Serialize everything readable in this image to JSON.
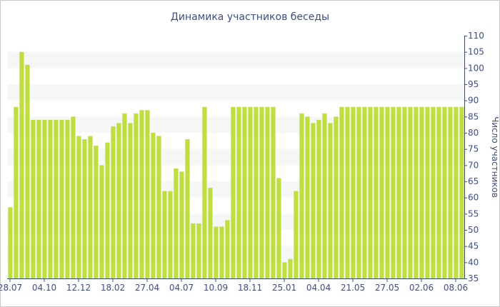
{
  "chart_data": {
    "type": "bar",
    "title": "Динамика участников беседы",
    "xlabel": "",
    "ylabel": "Число участников",
    "ylim": [
      35,
      110
    ],
    "y_ticks": [
      35,
      40,
      45,
      50,
      55,
      60,
      65,
      70,
      75,
      80,
      85,
      90,
      95,
      100,
      105,
      110
    ],
    "y_axis_position": "right",
    "grid": "alternating horizontal bands",
    "bar_color": "#bfdf3a",
    "band_color": "#f6f6f6",
    "text_color": "#3d4d8a",
    "x_tick_labels": [
      {
        "index": 0,
        "label": "28.07"
      },
      {
        "index": 6,
        "label": "04.10"
      },
      {
        "index": 12,
        "label": "12.12"
      },
      {
        "index": 18,
        "label": "18.02"
      },
      {
        "index": 24,
        "label": "27.04"
      },
      {
        "index": 30,
        "label": "04.07"
      },
      {
        "index": 36,
        "label": "10.09"
      },
      {
        "index": 42,
        "label": "18.11"
      },
      {
        "index": 48,
        "label": "25.01"
      },
      {
        "index": 54,
        "label": "04.04"
      },
      {
        "index": 60,
        "label": "21.05"
      },
      {
        "index": 66,
        "label": "27.05"
      },
      {
        "index": 72,
        "label": "02.06"
      },
      {
        "index": 78,
        "label": "08.06"
      }
    ],
    "values": [
      57,
      88,
      105,
      101,
      84,
      84,
      84,
      84,
      84,
      84,
      84,
      85,
      79,
      78,
      79,
      76,
      70,
      77,
      82,
      83,
      86,
      83,
      86,
      87,
      87,
      80,
      79,
      62,
      62,
      69,
      68,
      78,
      52,
      52,
      88,
      63,
      51,
      51,
      53,
      88,
      88,
      88,
      88,
      88,
      88,
      88,
      88,
      66,
      40,
      41,
      62,
      86,
      85,
      83,
      84,
      86,
      83,
      85,
      88,
      88,
      88,
      88,
      88,
      88,
      88,
      88,
      88,
      88,
      88,
      88,
      88,
      88,
      88,
      88,
      88,
      88,
      88,
      88,
      88,
      88
    ]
  }
}
